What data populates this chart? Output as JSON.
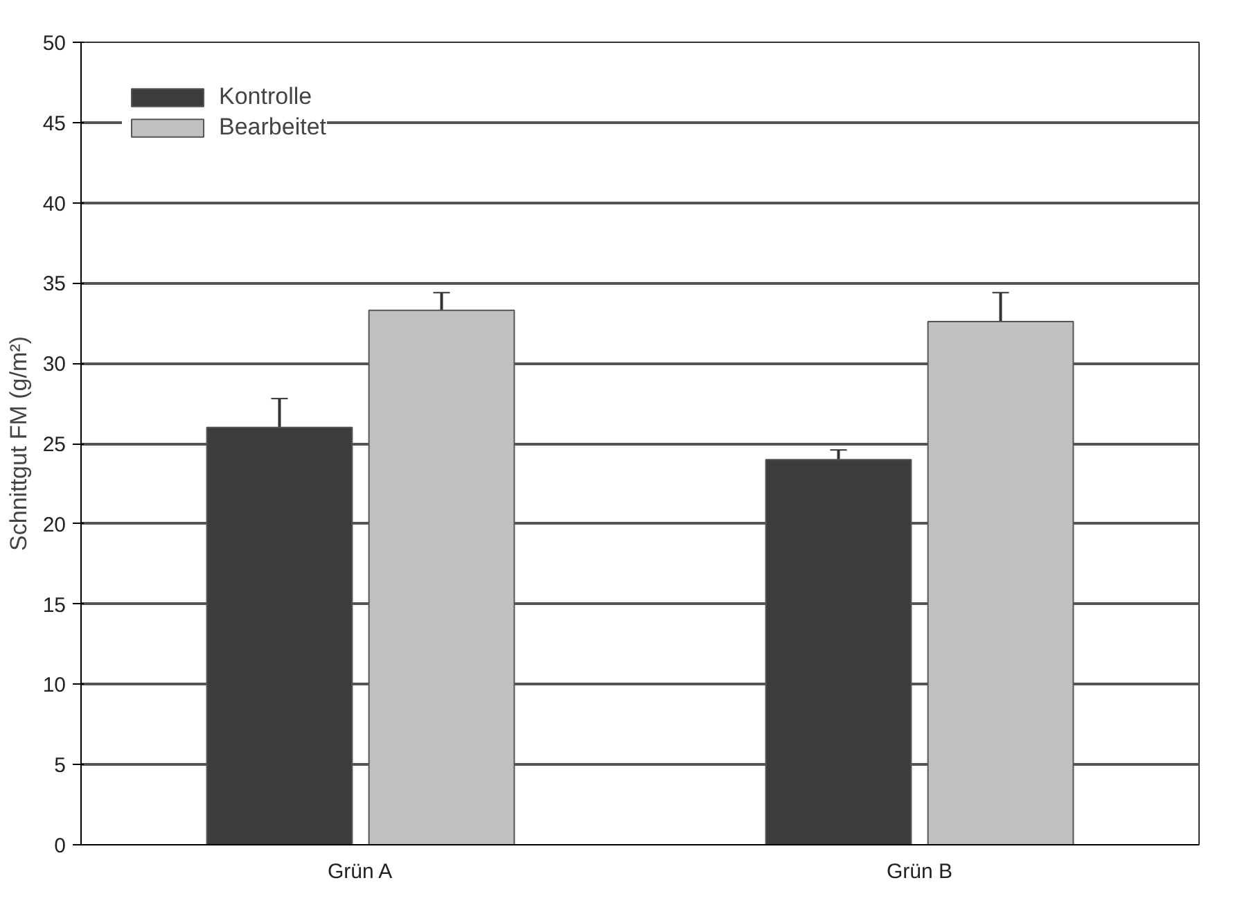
{
  "chart_data": {
    "type": "bar",
    "ylabel": "Schnittgut FM (g/m²)",
    "categories": [
      "Grün A",
      "Grün B"
    ],
    "series": [
      {
        "name": "Kontrolle",
        "color": "#3c3c3c",
        "values": [
          26.0,
          24.0
        ],
        "errors": [
          1.8,
          0.6
        ]
      },
      {
        "name": "Bearbeitet",
        "color": "#c0c0c0",
        "values": [
          33.3,
          32.6
        ],
        "errors": [
          1.1,
          1.8
        ]
      }
    ],
    "ylim": [
      0,
      50
    ],
    "yticks": [
      0,
      5,
      10,
      15,
      20,
      25,
      30,
      35,
      40,
      45,
      50
    ],
    "grid": "y",
    "legend": "top left"
  }
}
